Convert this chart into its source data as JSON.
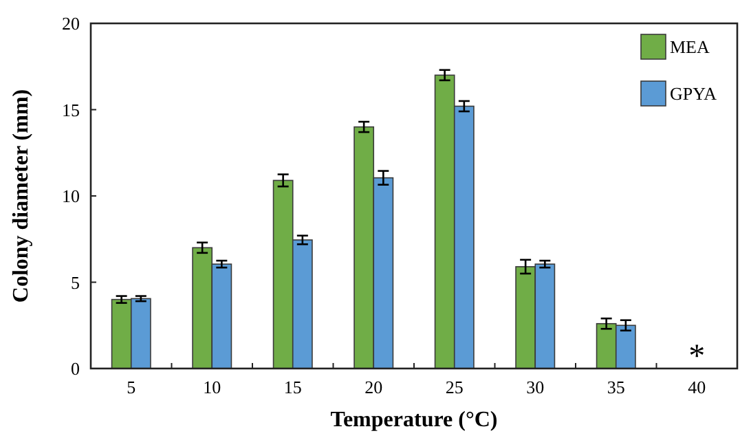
{
  "chart_data": {
    "type": "bar",
    "xlabel": "Temperature (°C)",
    "ylabel": "Colony diameter (mm)",
    "categories": [
      "5",
      "10",
      "15",
      "20",
      "25",
      "30",
      "35",
      "40"
    ],
    "series": [
      {
        "name": "MEA",
        "color": "#70ad47",
        "values": [
          4.0,
          7.0,
          10.9,
          14.0,
          17.0,
          5.9,
          2.6,
          null
        ],
        "errors": [
          0.2,
          0.3,
          0.35,
          0.3,
          0.3,
          0.4,
          0.3,
          null
        ]
      },
      {
        "name": "GPYA",
        "color": "#5b9bd5",
        "values": [
          4.05,
          6.05,
          7.45,
          11.05,
          15.2,
          6.05,
          2.5,
          null
        ],
        "errors": [
          0.15,
          0.2,
          0.25,
          0.4,
          0.3,
          0.2,
          0.3,
          null
        ]
      }
    ],
    "ylim": [
      0,
      20
    ],
    "yticks": [
      0,
      5,
      10,
      15,
      20
    ],
    "grid": false,
    "legend": "top right",
    "annotations": [
      "*"
    ]
  }
}
